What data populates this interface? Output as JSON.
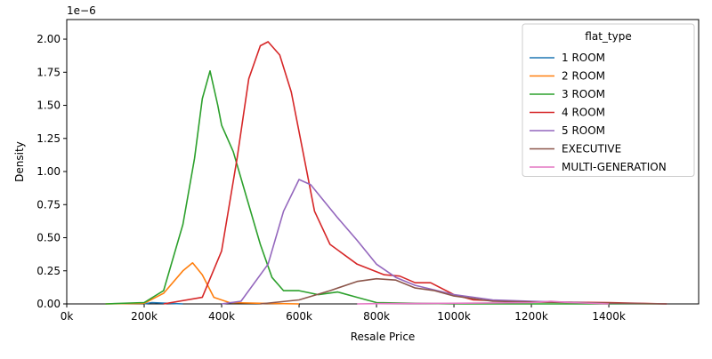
{
  "chart_data": {
    "type": "line",
    "xlabel": "Resale Price",
    "ylabel": "Density",
    "y_offset_label": "1e−6",
    "legend_title": "flat_type",
    "legend_loc": "upper right",
    "xlim": [
      0,
      1632000
    ],
    "ylim": [
      0,
      2.148
    ],
    "xticks": [
      {
        "value": 0,
        "label": "0k"
      },
      {
        "value": 200000,
        "label": "200k"
      },
      {
        "value": 400000,
        "label": "400k"
      },
      {
        "value": 600000,
        "label": "600k"
      },
      {
        "value": 800000,
        "label": "800k"
      },
      {
        "value": 1000000,
        "label": "1000k"
      },
      {
        "value": 1200000,
        "label": "1200k"
      },
      {
        "value": 1400000,
        "label": "1400k"
      }
    ],
    "yticks": [
      {
        "value": 0,
        "label": "0.00"
      },
      0.25,
      {
        "value": 0.5,
        "label": "0.50"
      },
      0.75,
      {
        "value": 1,
        "label": "1.00"
      },
      1.25,
      {
        "value": 1.5,
        "label": "1.50"
      },
      1.75,
      {
        "value": 2,
        "label": "2.00"
      }
    ],
    "series": [
      {
        "name": "1 ROOM",
        "color": "#1f77b4",
        "x": [
          200000,
          220000,
          260000,
          300000
        ],
        "values": [
          0,
          0.01,
          0.005,
          0
        ]
      },
      {
        "name": "2 ROOM",
        "color": "#ff7f0e",
        "x": [
          100000,
          200000,
          250000,
          300000,
          325000,
          350000,
          380000,
          420000,
          500000,
          600000
        ],
        "values": [
          0,
          0.005,
          0.08,
          0.25,
          0.31,
          0.22,
          0.05,
          0.01,
          0.005,
          0
        ]
      },
      {
        "name": "3 ROOM",
        "color": "#2ca02c",
        "x": [
          100000,
          200000,
          250000,
          300000,
          330000,
          350000,
          370000,
          390000,
          400000,
          430000,
          460000,
          500000,
          530000,
          560000,
          600000,
          650000,
          700000,
          750000,
          800000,
          900000,
          1000000,
          1550000
        ],
        "values": [
          0,
          0.01,
          0.1,
          0.6,
          1.1,
          1.55,
          1.76,
          1.5,
          1.35,
          1.15,
          0.85,
          0.45,
          0.2,
          0.1,
          0.1,
          0.07,
          0.09,
          0.05,
          0.01,
          0.005,
          0,
          0
        ]
      },
      {
        "name": "4 ROOM",
        "color": "#d62728",
        "x": [
          250000,
          350000,
          400000,
          440000,
          470000,
          500000,
          520000,
          550000,
          580000,
          610000,
          640000,
          680000,
          750000,
          820000,
          860000,
          900000,
          940000,
          1000000,
          1050000,
          1200000,
          1400000,
          1550000
        ],
        "values": [
          0,
          0.05,
          0.4,
          1.1,
          1.7,
          1.95,
          1.98,
          1.88,
          1.6,
          1.15,
          0.7,
          0.45,
          0.3,
          0.22,
          0.21,
          0.16,
          0.16,
          0.07,
          0.03,
          0.015,
          0.01,
          0
        ]
      },
      {
        "name": "5 ROOM",
        "color": "#9467bd",
        "x": [
          400000,
          450000,
          520000,
          560000,
          600000,
          630000,
          700000,
          750000,
          800000,
          850000,
          900000,
          1000000,
          1100000,
          1200000,
          1400000,
          1550000
        ],
        "values": [
          0,
          0.02,
          0.3,
          0.7,
          0.94,
          0.9,
          0.65,
          0.48,
          0.3,
          0.2,
          0.14,
          0.07,
          0.03,
          0.02,
          0.005,
          0
        ]
      },
      {
        "name": "EXECUTIVE",
        "color": "#8c564b",
        "x": [
          500000,
          600000,
          680000,
          750000,
          800000,
          850000,
          900000,
          950000,
          1000000,
          1100000,
          1300000,
          1550000
        ],
        "values": [
          0,
          0.03,
          0.1,
          0.17,
          0.19,
          0.18,
          0.12,
          0.1,
          0.06,
          0.02,
          0.01,
          0
        ]
      },
      {
        "name": "MULTI-GENERATION",
        "color": "#e377c2",
        "x": [
          750000,
          800000,
          1000000,
          1200000,
          1250000,
          1300000,
          1400000
        ],
        "values": [
          0,
          0.002,
          0.005,
          0.01,
          0.02,
          0.01,
          0
        ]
      }
    ]
  }
}
